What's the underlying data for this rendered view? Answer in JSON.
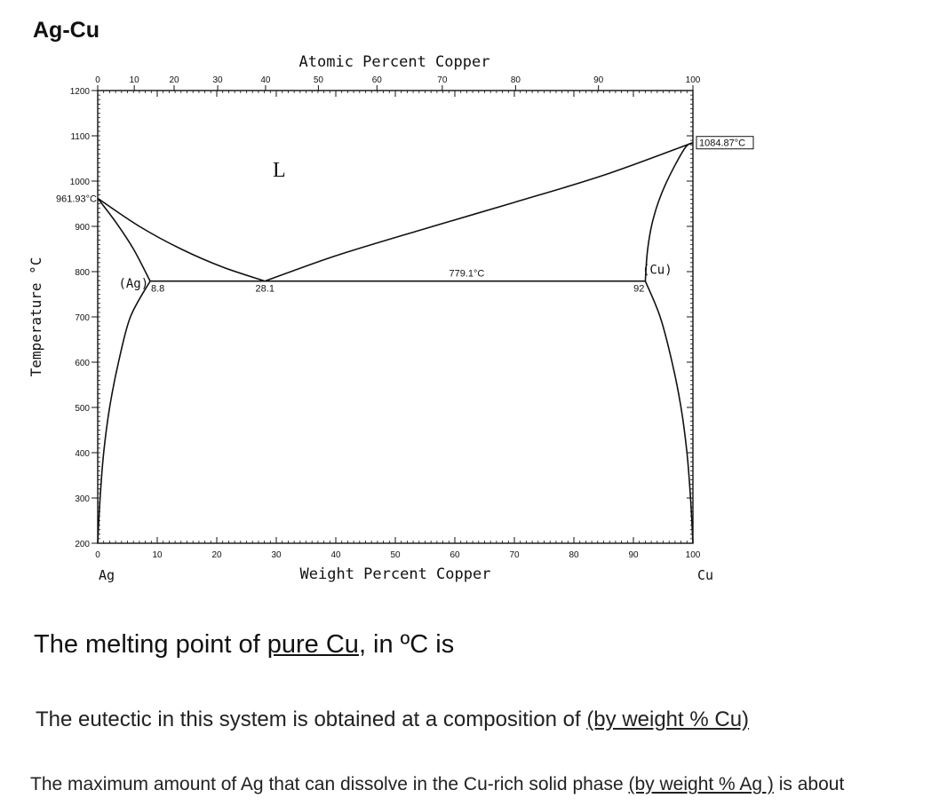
{
  "chart_data": {
    "type": "phase-diagram",
    "system_title": "Ag-Cu",
    "top_axis": {
      "label": "Atomic Percent Copper",
      "ticks": [
        0,
        10,
        20,
        30,
        40,
        50,
        60,
        70,
        80,
        90,
        100
      ],
      "tick_labels": [
        "0",
        "10",
        "20",
        "30",
        "40",
        "50",
        "60",
        "70",
        "80",
        "90",
        "100"
      ]
    },
    "x_axis": {
      "label": "Weight Percent Copper",
      "range": [
        0,
        100
      ],
      "ticks": [
        0,
        10,
        20,
        30,
        40,
        50,
        60,
        70,
        80,
        90,
        100
      ],
      "tick_labels": [
        "0",
        "10",
        "20",
        "30",
        "40",
        "50",
        "60",
        "70",
        "80",
        "90",
        "100"
      ],
      "left_end": "Ag",
      "right_end": "Cu"
    },
    "y_axis": {
      "label": "Temperature °C",
      "range": [
        200,
        1200
      ],
      "ticks": [
        200,
        300,
        400,
        500,
        600,
        700,
        800,
        900,
        1000,
        1100,
        1200
      ],
      "tick_labels": [
        "200",
        "300",
        "400",
        "500",
        "600",
        "700",
        "800",
        "900",
        "1000",
        "1100",
        "1200"
      ]
    },
    "key_points": {
      "ag_melting": {
        "x": 0,
        "y": 961.93,
        "label": "961.93°C"
      },
      "cu_melting": {
        "x": 100,
        "y": 1084.87,
        "label": "1084.87°C"
      },
      "eutectic": {
        "x": 28.1,
        "y": 779.1,
        "label": "28.1",
        "temp_label": "779.1°C"
      },
      "ag_solvus_max": {
        "x": 8.8,
        "y": 779.1,
        "label": "8.8"
      },
      "cu_solvus_max": {
        "x": 92,
        "y": 779.1,
        "label": "92"
      }
    },
    "curves": {
      "liquidus_ag": [
        [
          0,
          961.93
        ],
        [
          7,
          900
        ],
        [
          14,
          850
        ],
        [
          21,
          810
        ],
        [
          28.1,
          779.1
        ]
      ],
      "liquidus_cu": [
        [
          28.1,
          779.1
        ],
        [
          40,
          835
        ],
        [
          55,
          895
        ],
        [
          70,
          953
        ],
        [
          85,
          1013
        ],
        [
          100,
          1084.87
        ]
      ],
      "solidus_ag": [
        [
          0,
          961.93
        ],
        [
          3,
          910
        ],
        [
          6,
          850
        ],
        [
          8.8,
          779.1
        ]
      ],
      "solidus_cu": [
        [
          92,
          779.1
        ],
        [
          92.4,
          850
        ],
        [
          93.4,
          920
        ],
        [
          95.3,
          990
        ],
        [
          98.5,
          1070
        ],
        [
          100,
          1084.87
        ]
      ],
      "solvus_ag": [
        [
          8.8,
          779.1
        ],
        [
          5.5,
          700
        ],
        [
          3.5,
          600
        ],
        [
          2,
          500
        ],
        [
          1,
          400
        ],
        [
          0.4,
          300
        ],
        [
          0,
          200
        ]
      ],
      "solvus_cu": [
        [
          92,
          779.1
        ],
        [
          94.5,
          700
        ],
        [
          96.5,
          600
        ],
        [
          98,
          500
        ],
        [
          99,
          400
        ],
        [
          99.6,
          300
        ],
        [
          100,
          200
        ]
      ],
      "eutectic_line": [
        [
          8.8,
          779.1
        ],
        [
          92,
          779.1
        ]
      ]
    },
    "region_labels": [
      {
        "text": "L",
        "x": 30.5,
        "y": 1010
      },
      {
        "text": "(Ag)",
        "x": 3.5,
        "y": 765
      },
      {
        "text": "(Cu)",
        "x": 94,
        "y": 795
      }
    ]
  },
  "questions": {
    "q1": {
      "before": "The melting point of ",
      "underlined": "pure Cu",
      "after": ", in ºC is"
    },
    "q2": {
      "before": "The eutectic in this system is obtained at a composition of ",
      "underlined": "(by weight % Cu)",
      "after": ""
    },
    "q3": {
      "before": "The maximum amount of Ag that can dissolve in the Cu-rich solid phase ",
      "underlined": "(by weight % Ag )",
      "after": " is about"
    }
  }
}
